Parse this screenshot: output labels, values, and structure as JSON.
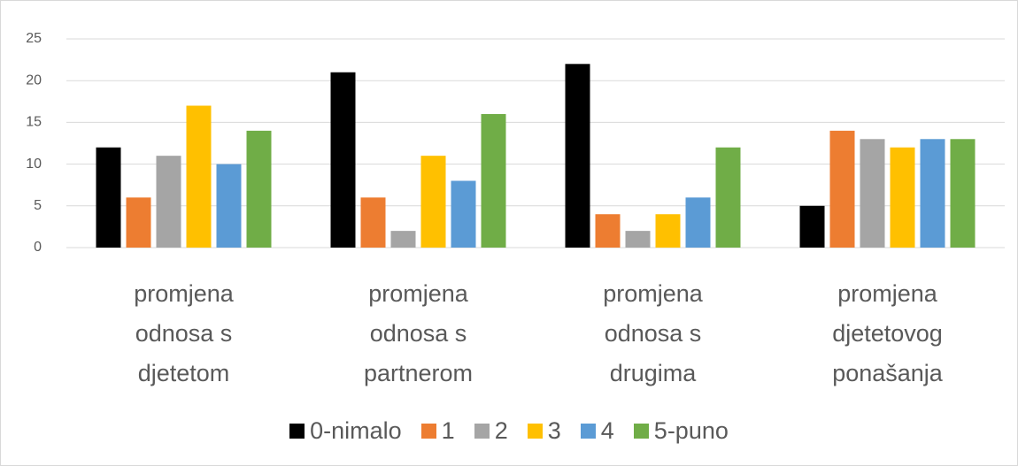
{
  "chart_data": {
    "type": "bar",
    "categories": [
      "promjena odnosa s djetetom",
      "promjena odnosa s partnerom",
      "promjena odnosa s drugima",
      "promjena djetetovog ponašanja"
    ],
    "series": [
      {
        "name": "0-nimalo",
        "color": "#000000",
        "values": [
          12,
          21,
          22,
          5
        ]
      },
      {
        "name": "1",
        "color": "#ed7d31",
        "values": [
          6,
          6,
          4,
          14
        ]
      },
      {
        "name": "2",
        "color": "#a5a5a5",
        "values": [
          11,
          2,
          2,
          13
        ]
      },
      {
        "name": "3",
        "color": "#ffc000",
        "values": [
          17,
          11,
          4,
          12
        ]
      },
      {
        "name": "4",
        "color": "#5b9bd5",
        "values": [
          10,
          8,
          6,
          13
        ]
      },
      {
        "name": "5-puno",
        "color": "#70ad47",
        "values": [
          14,
          16,
          12,
          13
        ]
      }
    ],
    "ylim": [
      0,
      25
    ],
    "yticks": [
      0,
      5,
      10,
      15,
      20,
      25
    ],
    "grid": true,
    "legend": "bottom"
  }
}
